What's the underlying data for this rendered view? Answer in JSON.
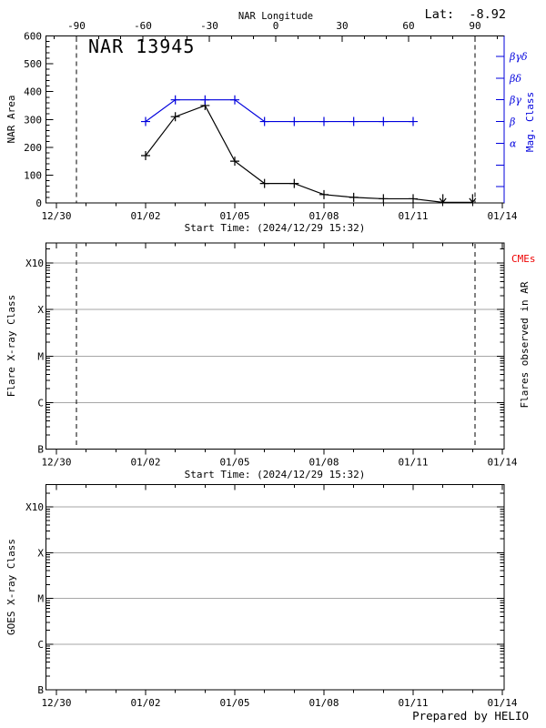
{
  "header": {
    "lat_label": "Lat:  -8.92"
  },
  "footer_label": "Prepared by HELIO",
  "colors": {
    "accent_blue": "#0000dd",
    "grid_gray": "#a6a6a6",
    "cme_red": "#ee0000",
    "axis_black": "#000000"
  },
  "time_axis": {
    "title": "Start Time: (2024/12/29 15:32)",
    "major_tick_labels": [
      "12/30",
      "01/02",
      "01/05",
      "01/08",
      "01/11",
      "01/14"
    ],
    "major_tick_days": [
      0,
      3,
      6,
      9,
      12,
      15
    ],
    "minor_tick_days": [
      1,
      2,
      4,
      5,
      7,
      8,
      10,
      11,
      13,
      14
    ]
  },
  "chart_data": [
    {
      "type": "line",
      "title": "NAR 13945",
      "ylabel": "NAR Area",
      "ylim": [
        0,
        600
      ],
      "yticks": [
        0,
        100,
        200,
        300,
        400,
        500,
        600
      ],
      "y_minor_step": 20,
      "top_axis": {
        "title": "NAR Longitude",
        "tick_values": [
          -90,
          -60,
          -30,
          0,
          30,
          60,
          90
        ],
        "minor_step": 10,
        "visible_range": [
          -104,
          103
        ]
      },
      "right_axis": {
        "title": "Mag. Class",
        "tick_labels": [
          "βγδ",
          "βδ",
          "βγ",
          "β",
          "α",
          "",
          ""
        ]
      },
      "limb_lines_longitude": [
        -90,
        90
      ],
      "series": [
        {
          "name": "NAR area",
          "color": "black",
          "marker": "plus",
          "x_dates": [
            "01/02",
            "01/03",
            "01/04",
            "01/05",
            "01/06",
            "01/07",
            "01/08",
            "01/09",
            "01/10",
            "01/11"
          ],
          "x_days": [
            3,
            4,
            5,
            6,
            7,
            8,
            9,
            10,
            11,
            12
          ],
          "values": [
            170,
            310,
            350,
            150,
            70,
            70,
            30,
            20,
            15,
            15
          ]
        },
        {
          "name": "Magnetic class",
          "color": "blue",
          "marker": "plus",
          "x_dates": [
            "01/02",
            "01/03",
            "01/04",
            "01/05",
            "01/06",
            "01/07",
            "01/08",
            "01/09",
            "01/10",
            "01/11"
          ],
          "x_days": [
            3,
            4,
            5,
            6,
            7,
            8,
            9,
            10,
            11,
            12
          ],
          "values": [
            "β",
            "βγ",
            "βγ",
            "βγ",
            "β",
            "β",
            "β",
            "β",
            "β",
            "β"
          ]
        }
      ],
      "below_range_arrow_dates": [
        "01/12",
        "01/13"
      ],
      "below_range_arrow_days": [
        13,
        14
      ]
    },
    {
      "type": "log-empty",
      "ylabel": "Flare X-ray Class",
      "ytick_labels": [
        "B",
        "C",
        "M",
        "X",
        "X10"
      ],
      "right_title": "Flares observed in AR",
      "cme_label": "CMEs",
      "limb_lines_longitude": [
        -90,
        90
      ],
      "xlabel": "Start Time: (2024/12/29 15:32)",
      "series": []
    },
    {
      "type": "log-empty",
      "ylabel": "GOES X-ray Class",
      "ytick_labels": [
        "B",
        "C",
        "M",
        "X",
        "X10"
      ],
      "series": []
    }
  ]
}
